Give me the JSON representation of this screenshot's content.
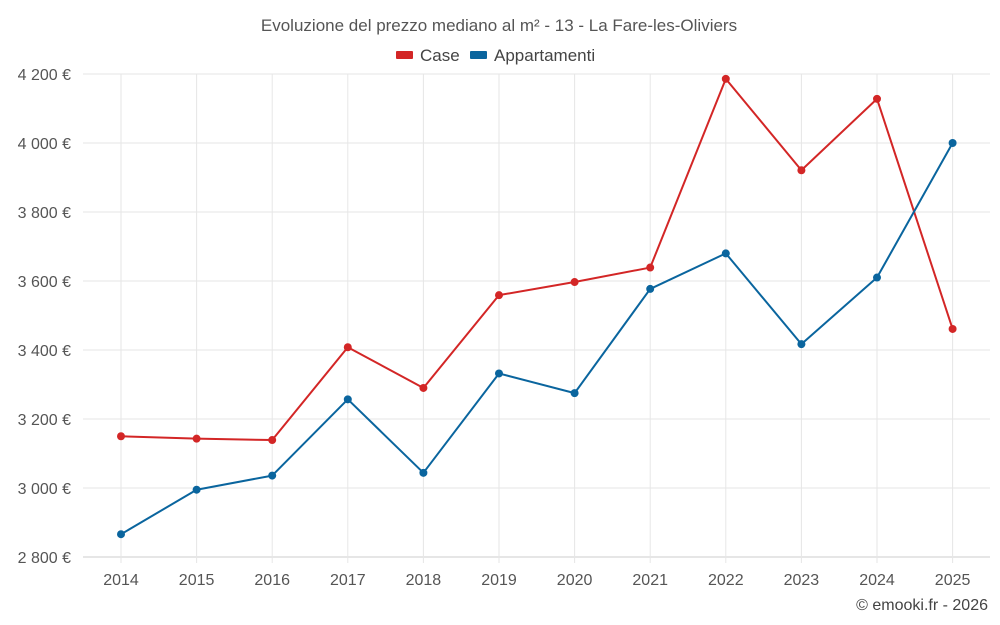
{
  "chart_data": {
    "type": "line",
    "title": "Evoluzione del prezzo mediano al m² - 13 - La Fare-les-Oliviers",
    "categories": [
      "2014",
      "2015",
      "2016",
      "2017",
      "2018",
      "2019",
      "2020",
      "2021",
      "2022",
      "2023",
      "2024",
      "2025"
    ],
    "series": [
      {
        "name": "Case",
        "color": "#d32626",
        "values": [
          3150,
          3143,
          3139,
          3408,
          3290,
          3559,
          3597,
          3639,
          4186,
          3921,
          4128,
          3461
        ]
      },
      {
        "name": "Appartamenti",
        "color": "#0a659e",
        "values": [
          2866,
          2995,
          3036,
          3257,
          3044,
          3332,
          3275,
          3577,
          3680,
          3417,
          3610,
          4000
        ]
      }
    ],
    "ylim": [
      2800,
      4200
    ],
    "yticks": [
      2800,
      3000,
      3200,
      3400,
      3600,
      3800,
      4000,
      4200
    ],
    "ytick_labels": [
      "2 800 €",
      "3 000 €",
      "3 200 €",
      "3 400 €",
      "3 600 €",
      "3 800 €",
      "4 000 €",
      "4 200 €"
    ],
    "xlabel": "",
    "ylabel": "",
    "grid": true,
    "legend_position": "top-center"
  },
  "credit": "© emooki.fr - 2026"
}
